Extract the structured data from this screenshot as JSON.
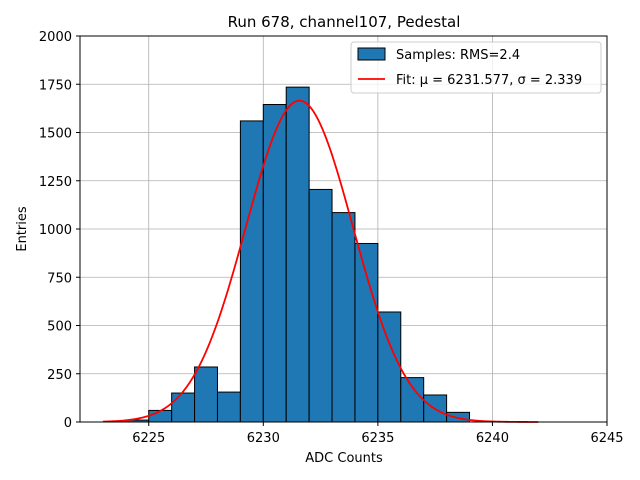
{
  "chart_data": {
    "type": "bar",
    "title": "Run 678, channel107, Pedestal",
    "xlabel": "ADC Counts",
    "ylabel": "Entries",
    "xlim": [
      6222,
      6245
    ],
    "ylim": [
      0,
      2000
    ],
    "grid": true,
    "x_ticks": [
      6225,
      6230,
      6235,
      6240,
      6245
    ],
    "x_tick_labels": [
      "6225",
      "6230",
      "6235",
      "6240",
      "6245"
    ],
    "y_ticks": [
      0,
      250,
      500,
      750,
      1000,
      1250,
      1500,
      1750,
      2000
    ],
    "y_tick_labels": [
      "0",
      "250",
      "500",
      "750",
      "1000",
      "1250",
      "1500",
      "1750",
      "2000"
    ],
    "legend_position": "upper right",
    "colors": {
      "bars": "#1f77b4",
      "bar_edge": "#000000",
      "fit": "#ff0000"
    },
    "series": [
      {
        "name": "Samples: RMS=2.4",
        "kind": "histogram",
        "bin_edges": [
          6224,
          6225,
          6226,
          6227,
          6228,
          6229,
          6230,
          6231,
          6232,
          6233,
          6234,
          6235,
          6236,
          6237,
          6238,
          6239
        ],
        "values": [
          10,
          60,
          150,
          285,
          155,
          1560,
          1645,
          1735,
          1205,
          1085,
          925,
          570,
          230,
          140,
          50
        ]
      },
      {
        "name": "Fit: μ = 6231.577, σ = 2.339",
        "kind": "gaussian",
        "mu": 6231.577,
        "sigma": 2.339,
        "amplitude": 1665,
        "x_range": [
          6223,
          6242
        ]
      }
    ]
  }
}
